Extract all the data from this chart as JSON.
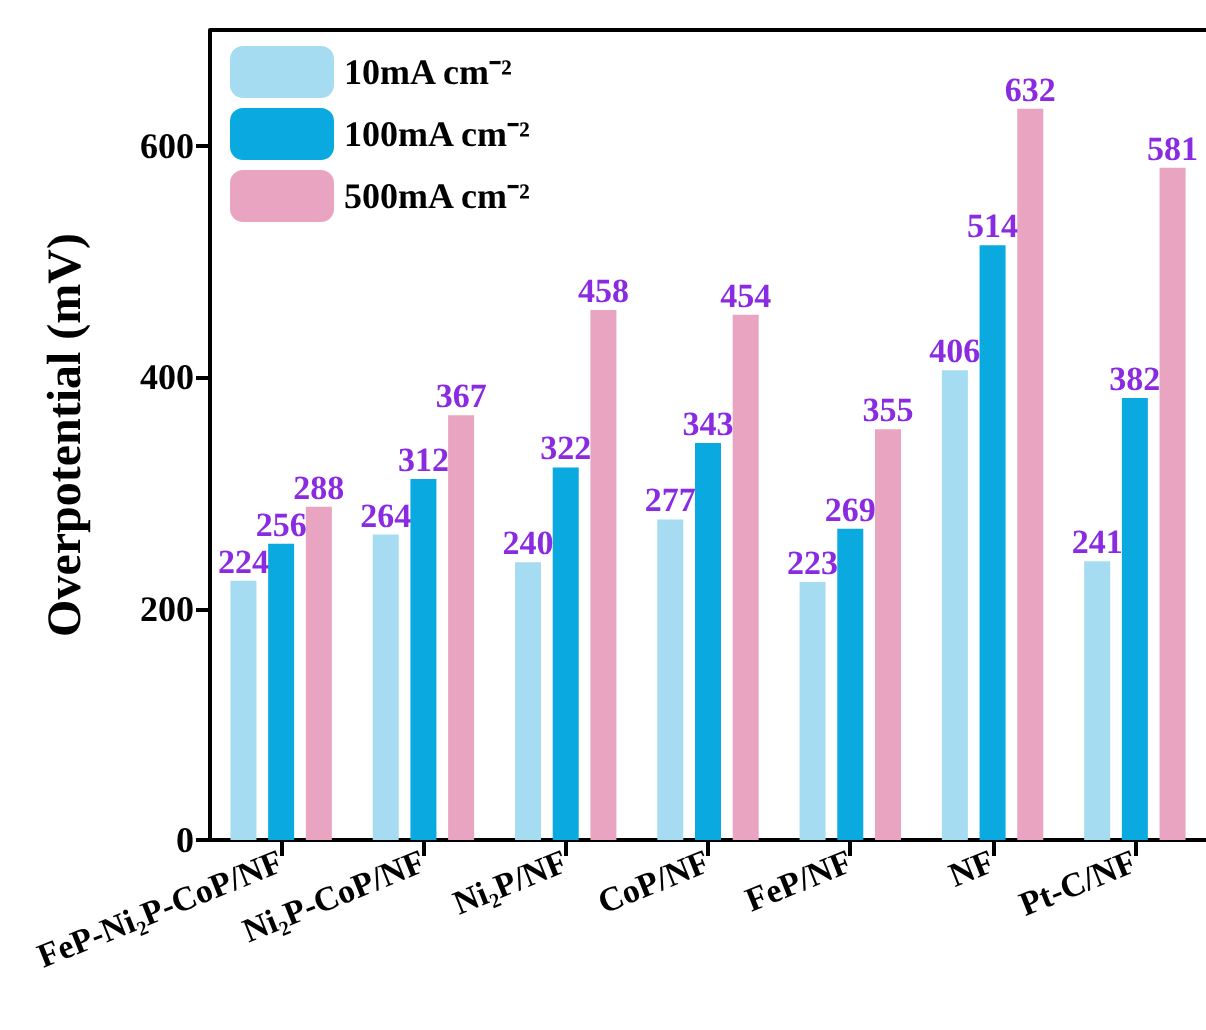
{
  "chart_data": {
    "type": "bar",
    "ylabel": "Overpotential (mV)",
    "categories": [
      "FeP-Ni₂P-CoP/NF",
      "Ni₂P-CoP/NF",
      "Ni₂P/NF",
      "CoP/NF",
      "FeP/NF",
      "NF",
      "Pt-C/NF"
    ],
    "series": [
      {
        "name": "10mA cm⁻²",
        "color": "#a6dcf2",
        "values": [
          224,
          264,
          240,
          277,
          223,
          406,
          241
        ]
      },
      {
        "name": "100mA cm⁻²",
        "color": "#0aaae0",
        "values": [
          256,
          312,
          322,
          343,
          269,
          514,
          382
        ]
      },
      {
        "name": "500mA cm⁻²",
        "color": "#e8a4c0",
        "values": [
          288,
          367,
          458,
          454,
          355,
          632,
          581
        ]
      }
    ],
    "ylim": [
      0,
      700
    ],
    "yticks": [
      0,
      200,
      400,
      600
    ],
    "data_labels": true,
    "legend": "top left",
    "grid": false
  }
}
